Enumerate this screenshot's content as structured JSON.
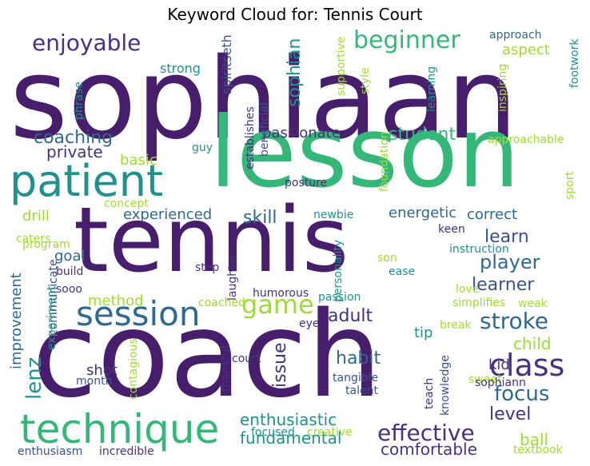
{
  "title": "Keyword Cloud for: Tennis Court",
  "colors": {
    "dark_purple": "#471e6b",
    "purple": "#46327e",
    "indigo": "#3b528b",
    "blue": "#31688e",
    "teal": "#21918c",
    "green": "#35b779",
    "lime": "#a0da39",
    "yellow": "#d8e219"
  },
  "words": [
    "sophiaan",
    "lesson",
    "tennis",
    "coach",
    "patient",
    "technique",
    "session",
    "enjoyable",
    "beginner",
    "coaching",
    "game",
    "class",
    "stroke",
    "effective",
    "focus",
    "student",
    "passionate",
    "private",
    "basic",
    "experienced",
    "skill",
    "energetic",
    "correct",
    "learn",
    "player",
    "learner",
    "drill",
    "goal",
    "method",
    "improvement",
    "lenz",
    "adult",
    "issue",
    "habit",
    "child",
    "kid",
    "tip",
    "shot",
    "level",
    "enthusiastic",
    "fundamental",
    "comfortable",
    "ball",
    "strong",
    "approach",
    "aspect",
    "sophian",
    "spiritseth",
    "supportive",
    "style",
    "footwork",
    "phrase",
    "learning",
    "inspiring",
    "approachable",
    "guy",
    "establishes",
    "beneficial",
    "foundation",
    "posture",
    "sport",
    "concept",
    "caters",
    "program",
    "build",
    "communicate",
    "sooo",
    "step",
    "laughter",
    "coached",
    "humorous",
    "newbie",
    "keen",
    "instruction",
    "son",
    "ease",
    "personality",
    "love",
    "passion",
    "simplifies",
    "weak",
    "eye",
    "experiment",
    "break",
    "contagious",
    "thankful",
    "court",
    "month",
    "tangible",
    "teach",
    "knowledge",
    "sweet",
    "sophiann",
    "talent",
    "focused",
    "creative",
    "enthusiasm",
    "incredible",
    "textbook"
  ]
}
